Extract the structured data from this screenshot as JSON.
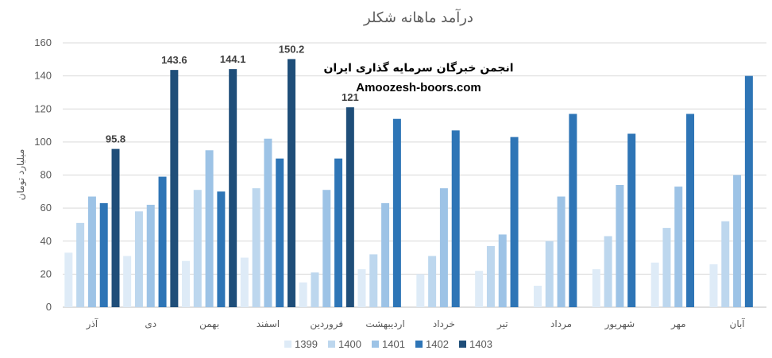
{
  "chart_data": {
    "type": "bar",
    "title": "درآمد ماهانه شکلر",
    "xlabel": "",
    "ylabel": "میلیارد تومان",
    "ylim": [
      0,
      160
    ],
    "yticks": [
      0,
      20,
      40,
      60,
      80,
      100,
      120,
      140,
      160
    ],
    "grid": true,
    "legend_position": "bottom",
    "categories": [
      "آذر",
      "دی",
      "بهمن",
      "اسفند",
      "فروردین",
      "اردیبهشت",
      "خرداد",
      "تیر",
      "مرداد",
      "شهریور",
      "مهر",
      "آبان"
    ],
    "series": [
      {
        "name": "1399",
        "color": "#DEEBF7",
        "values": [
          33,
          31,
          28,
          30,
          15,
          23,
          20,
          22,
          13,
          23,
          27,
          26
        ]
      },
      {
        "name": "1400",
        "color": "#BDD7EE",
        "values": [
          51,
          58,
          71,
          72,
          21,
          32,
          31,
          37,
          40,
          43,
          48,
          52
        ]
      },
      {
        "name": "1401",
        "color": "#9DC3E6",
        "values": [
          67,
          62,
          95,
          102,
          71,
          63,
          72,
          44,
          67,
          74,
          73,
          80
        ]
      },
      {
        "name": "1402",
        "color": "#2E75B6",
        "values": [
          63,
          79,
          70,
          90,
          90,
          114,
          107,
          103,
          117,
          105,
          117,
          140
        ]
      },
      {
        "name": "1403",
        "color": "#1F4E79",
        "values": [
          95.8,
          143.6,
          144.1,
          150.2,
          121,
          null,
          null,
          null,
          null,
          null,
          null,
          null
        ]
      }
    ],
    "data_labels": {
      "series": "1403",
      "values": [
        "95.8",
        "143.6",
        "144.1",
        "150.2",
        "121"
      ]
    },
    "annotations": [
      "انجمن خبرگان سرمایه گذاری ایران",
      "Amoozesh-boors.com"
    ]
  }
}
